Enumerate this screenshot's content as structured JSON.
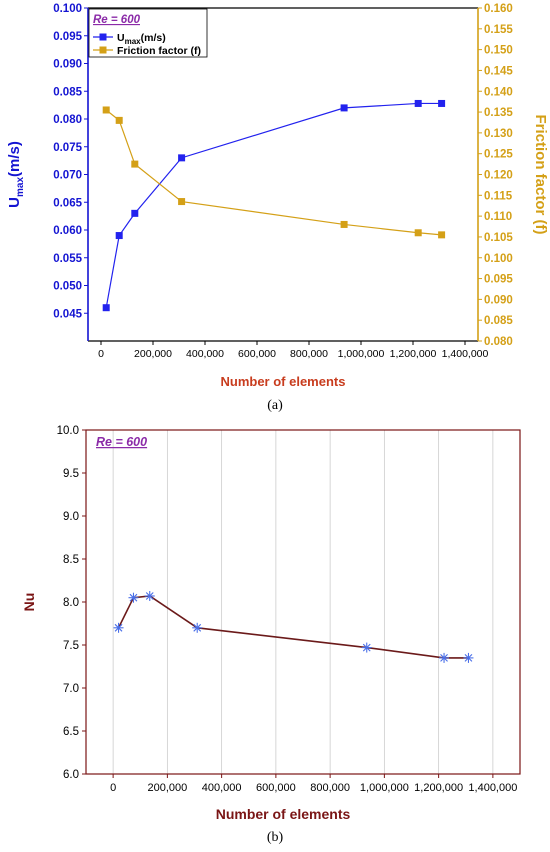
{
  "chart_data": [
    {
      "type": "line",
      "caption": "(a)",
      "annotation": "Re = 600",
      "xlabel": "Number of elements",
      "xlim": [
        -50000,
        1450000
      ],
      "xticks": [
        0,
        200000,
        400000,
        600000,
        800000,
        1000000,
        1200000,
        1400000
      ],
      "xtick_labels": [
        "0",
        "200,000",
        "400,000",
        "600,000",
        "800,000",
        "1,000,000",
        "1,200,000",
        "1,400,000"
      ],
      "ylabel_main": "U",
      "ylabel_sub": "max",
      "ylabel_unit": "(m/s)",
      "ylim": [
        0.04,
        0.1
      ],
      "yticks": [
        "0.045",
        "0.050",
        "0.055",
        "0.060",
        "0.065",
        "0.070",
        "0.075",
        "0.080",
        "0.085",
        "0.090",
        "0.095",
        "0.100"
      ],
      "y2label": "Friction factor (f)",
      "y2lim": [
        0.08,
        0.16
      ],
      "y2ticks": [
        "0.080",
        "0.085",
        "0.090",
        "0.095",
        "0.100",
        "0.105",
        "0.110",
        "0.115",
        "0.120",
        "0.125",
        "0.130",
        "0.135",
        "0.140",
        "0.145",
        "0.150",
        "0.155",
        "0.160"
      ],
      "left_axis_color": "#1414d2",
      "right_axis_color": "#d4a017",
      "xlabel_color": "#c83c1e",
      "legend_position": "top-left",
      "series": [
        {
          "name_main": "U",
          "name_sub": "max",
          "name_unit": "(m/s)",
          "axis": "left",
          "color": "#2222ee",
          "marker": "square",
          "x": [
            20000,
            70000,
            130000,
            310000,
            935000,
            1220000,
            1310000
          ],
          "y": [
            0.046,
            0.059,
            0.063,
            0.073,
            0.082,
            0.0828,
            0.0828
          ]
        },
        {
          "name": "Friction factor (f)",
          "axis": "right",
          "color": "#d4a017",
          "marker": "square",
          "x": [
            20000,
            70000,
            130000,
            310000,
            935000,
            1220000,
            1310000
          ],
          "y": [
            0.1355,
            0.133,
            0.1225,
            0.1135,
            0.108,
            0.106,
            0.1055
          ]
        }
      ]
    },
    {
      "type": "line",
      "caption": "(b)",
      "annotation": "Re = 600",
      "xlabel": "Number of elements",
      "ylabel": "Nu",
      "xlim": [
        -100000,
        1500000
      ],
      "xticks": [
        0,
        200000,
        400000,
        600000,
        800000,
        1000000,
        1200000,
        1400000
      ],
      "xtick_labels": [
        "0",
        "200,000",
        "400,000",
        "600,000",
        "800,000",
        "1,000,000",
        "1,200,000",
        "1,400,000"
      ],
      "ylim": [
        6.0,
        10.0
      ],
      "yticks": [
        "6.0",
        "6.5",
        "7.0",
        "7.5",
        "8.0",
        "8.5",
        "9.0",
        "9.5",
        "10.0"
      ],
      "axis_color": "#7a1515",
      "annotation_color": "#8b2ba8",
      "grid": "vertical",
      "series": [
        {
          "axis": "left",
          "color": "#6b1a1a",
          "marker_color": "#4a6fe8",
          "marker": "asterisk",
          "x": [
            20000,
            75000,
            135000,
            310000,
            935000,
            1220000,
            1310000
          ],
          "y": [
            7.7,
            8.05,
            8.07,
            7.7,
            7.47,
            7.35,
            7.35
          ]
        }
      ]
    }
  ]
}
